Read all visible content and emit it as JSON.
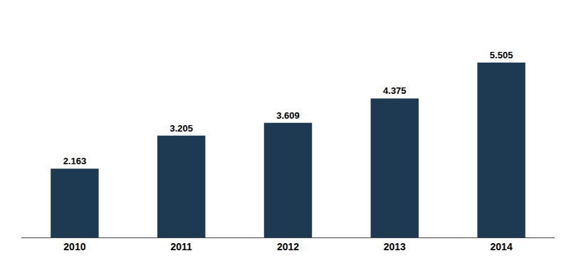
{
  "chart_data": {
    "type": "bar",
    "categories": [
      "2010",
      "2011",
      "2012",
      "2013",
      "2014"
    ],
    "values": [
      2.163,
      3.205,
      3.609,
      4.375,
      5.505
    ],
    "color": "#1e3a52",
    "ylim": [
      0,
      6.8
    ],
    "grid": false,
    "data_labels": true,
    "tick_labels": "x"
  }
}
